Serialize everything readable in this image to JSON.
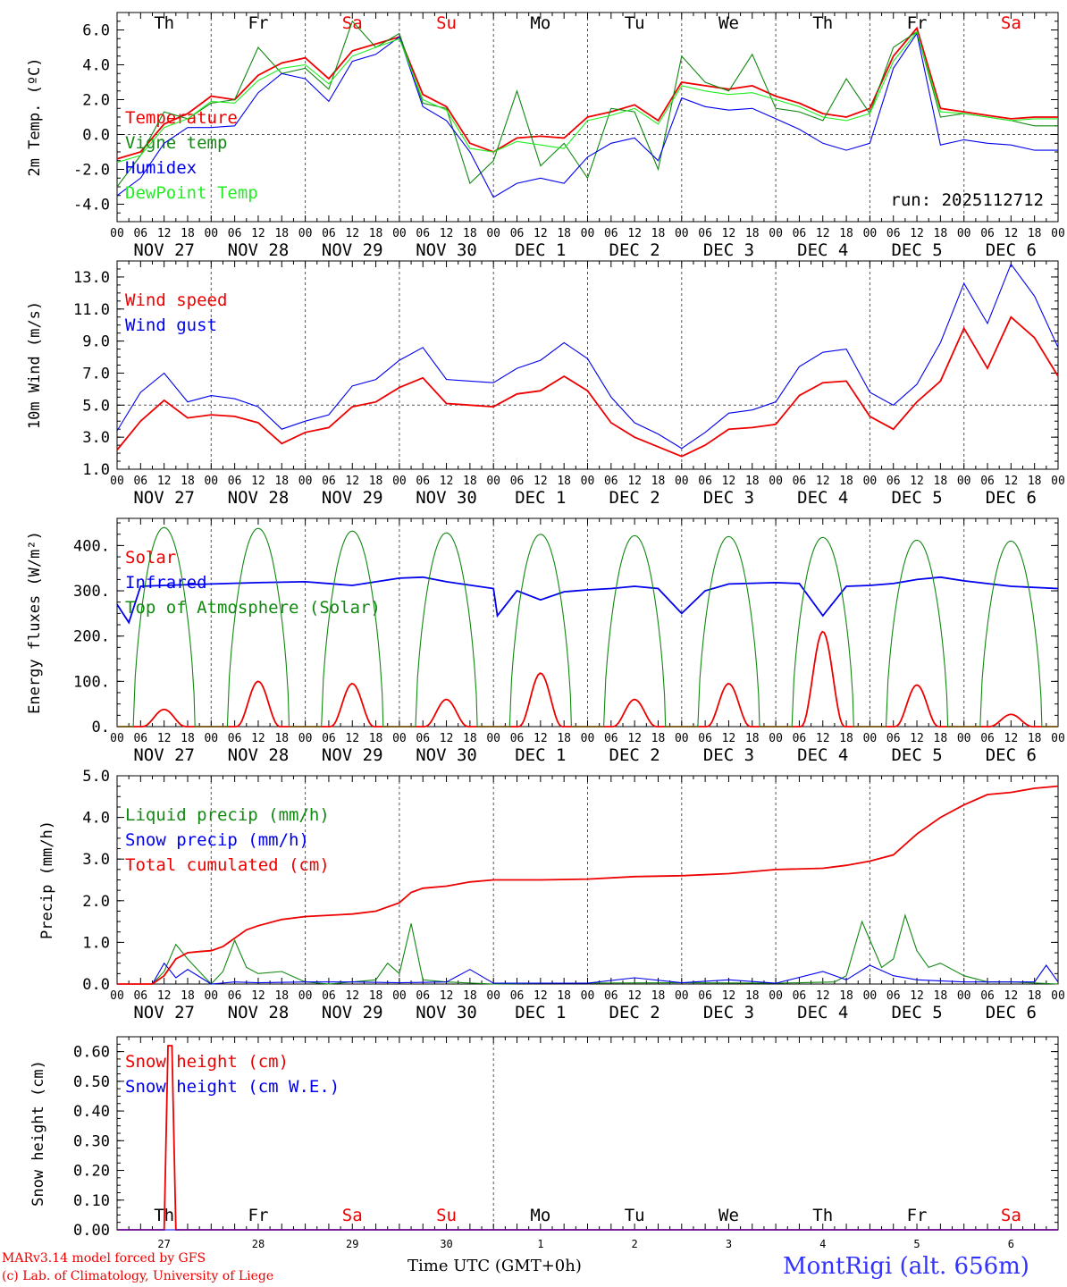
{
  "colors": {
    "red": "#ee0000",
    "green": "#118811",
    "blue": "#0000ee",
    "lightgreen": "#22ee22",
    "weekend": "#ee0000",
    "dash": "#555555"
  },
  "days": [
    "Th",
    "Fr",
    "Sa",
    "Su",
    "Mo",
    "Tu",
    "We",
    "Th",
    "Fr",
    "Sa"
  ],
  "weekend_flags": [
    false,
    false,
    true,
    true,
    false,
    false,
    false,
    false,
    false,
    true
  ],
  "dates": [
    "NOV 27",
    "NOV 28",
    "NOV 29",
    "NOV 30",
    "DEC  1",
    "DEC  2",
    "DEC  3",
    "DEC  4",
    "DEC  5",
    "DEC  6"
  ],
  "hour_ticks": [
    "00",
    "06",
    "12",
    "18"
  ],
  "hour_end": "00",
  "snow_dates": [
    "27",
    "28",
    "29",
    "30",
    "1",
    "2",
    "3",
    "4",
    "5",
    "6"
  ],
  "footer": {
    "credit_1": "MARv3.14 model forced by GFS",
    "credit_2": "(c) Lab. of Climatology, University of Liege",
    "x_axis_label": "Time UTC (GMT+0h)",
    "station": "MontRigi (alt. 656m)"
  },
  "chart_data": [
    {
      "id": "temperature",
      "type": "line",
      "ylabel": "2m Temp. (ºC)",
      "ylim": [
        -5.0,
        7.0
      ],
      "yticks": [
        -4,
        -2,
        0,
        2,
        4,
        6
      ],
      "yticklabels": [
        "-4.0",
        "-2.0",
        "0.0",
        "2.0",
        "4.0",
        "6.0"
      ],
      "dashed_y": 0.0,
      "annotation": "run: 2025112712",
      "x_unit": "hours from NOV 27 00 UTC",
      "series": [
        {
          "name": "Temperature",
          "color": "red",
          "x": [
            0,
            6,
            12,
            18,
            24,
            30,
            36,
            42,
            48,
            54,
            60,
            66,
            72,
            78,
            84,
            90,
            96,
            102,
            108,
            114,
            120,
            126,
            132,
            138,
            144,
            150,
            156,
            162,
            168,
            174,
            180,
            186,
            192,
            198,
            204,
            210,
            216,
            222,
            228,
            234,
            240
          ],
          "values": [
            -1.4,
            -1.0,
            0.6,
            1.2,
            2.2,
            2.0,
            3.4,
            4.1,
            4.4,
            3.2,
            4.8,
            5.2,
            5.6,
            2.3,
            1.6,
            -0.5,
            -1.0,
            -0.2,
            -0.1,
            -0.2,
            1.0,
            1.3,
            1.7,
            0.8,
            3.0,
            2.8,
            2.6,
            2.8,
            2.2,
            1.8,
            1.2,
            1.0,
            1.5,
            4.5,
            6.1,
            1.5,
            1.3,
            1.1,
            0.9,
            1.0,
            1.0
          ]
        },
        {
          "name": "Vigne temp",
          "color": "green",
          "x": [
            0,
            6,
            12,
            18,
            24,
            30,
            36,
            42,
            48,
            54,
            60,
            66,
            72,
            78,
            84,
            90,
            96,
            102,
            108,
            114,
            120,
            126,
            132,
            138,
            144,
            150,
            156,
            162,
            168,
            174,
            180,
            186,
            192,
            198,
            204,
            210,
            216,
            222,
            228,
            234,
            240
          ],
          "values": [
            -3.0,
            -1.2,
            1.3,
            0.9,
            1.8,
            2.0,
            5.0,
            3.5,
            3.8,
            2.6,
            6.5,
            5.0,
            5.8,
            1.8,
            1.5,
            -2.8,
            -1.5,
            2.5,
            -1.8,
            -0.5,
            -2.5,
            1.5,
            1.3,
            -2.0,
            4.5,
            3.0,
            2.5,
            4.6,
            1.5,
            1.3,
            0.8,
            3.2,
            1.2,
            5.0,
            5.9,
            1.0,
            1.2,
            1.0,
            0.8,
            0.5,
            0.5
          ]
        },
        {
          "name": "Humidex",
          "color": "blue",
          "x": [
            0,
            6,
            12,
            18,
            24,
            30,
            36,
            42,
            48,
            54,
            60,
            66,
            72,
            78,
            84,
            90,
            96,
            102,
            108,
            114,
            120,
            126,
            132,
            138,
            144,
            150,
            156,
            162,
            168,
            174,
            180,
            186,
            192,
            198,
            204,
            210,
            216,
            222,
            228,
            234,
            240
          ],
          "values": [
            -3.5,
            -2.5,
            -0.5,
            0.4,
            0.4,
            0.5,
            2.4,
            3.5,
            3.2,
            1.9,
            4.2,
            4.6,
            5.6,
            1.6,
            0.8,
            -1.0,
            -3.6,
            -2.8,
            -2.5,
            -2.8,
            -1.3,
            -0.5,
            -0.2,
            -1.5,
            2.1,
            1.6,
            1.4,
            1.5,
            0.9,
            0.3,
            -0.5,
            -0.9,
            -0.5,
            3.8,
            5.8,
            -0.6,
            -0.3,
            -0.5,
            -0.6,
            -0.9,
            -0.9
          ]
        },
        {
          "name": "DewPoint Temp",
          "color": "lightgreen",
          "x": [
            0,
            6,
            12,
            18,
            24,
            30,
            36,
            42,
            48,
            54,
            60,
            66,
            72,
            78,
            84,
            90,
            96,
            102,
            108,
            114,
            120,
            126,
            132,
            138,
            144,
            150,
            156,
            162,
            168,
            174,
            180,
            186,
            192,
            198,
            204,
            210,
            216,
            222,
            228,
            234,
            240
          ],
          "values": [
            -1.6,
            -1.2,
            0.4,
            0.9,
            1.9,
            1.8,
            3.1,
            3.8,
            4.0,
            2.9,
            4.5,
            5.0,
            5.5,
            2.0,
            1.4,
            -0.8,
            -1.0,
            -0.4,
            -0.6,
            -0.8,
            0.8,
            1.1,
            1.5,
            0.6,
            2.8,
            2.5,
            2.3,
            2.4,
            2.0,
            1.6,
            1.0,
            0.8,
            1.2,
            4.2,
            5.9,
            1.3,
            1.2,
            1.0,
            0.8,
            0.9,
            0.9
          ]
        }
      ]
    },
    {
      "id": "wind",
      "type": "line",
      "ylabel": "10m Wind (m/s)",
      "ylim": [
        1.0,
        14.0
      ],
      "yticks": [
        1,
        3,
        5,
        7,
        9,
        11,
        13
      ],
      "yticklabels": [
        "1.0",
        "3.0",
        "5.0",
        "7.0",
        "9.0",
        "11.0",
        "13.0"
      ],
      "dashed_y": 5.0,
      "x_unit": "hours from NOV 27 00 UTC",
      "series": [
        {
          "name": "Wind speed",
          "color": "red",
          "x": [
            0,
            6,
            12,
            18,
            24,
            30,
            36,
            42,
            48,
            54,
            60,
            66,
            72,
            78,
            84,
            90,
            96,
            102,
            108,
            114,
            120,
            126,
            132,
            138,
            144,
            150,
            156,
            162,
            168,
            174,
            180,
            186,
            192,
            198,
            204,
            210,
            216,
            222,
            228,
            234,
            240
          ],
          "values": [
            2.2,
            4.0,
            5.3,
            4.2,
            4.4,
            4.3,
            3.9,
            2.6,
            3.3,
            3.6,
            4.9,
            5.2,
            6.1,
            6.7,
            5.1,
            5.0,
            4.9,
            5.7,
            5.9,
            6.8,
            5.9,
            3.9,
            3.0,
            2.4,
            1.8,
            2.5,
            3.5,
            3.6,
            3.8,
            5.6,
            6.4,
            6.5,
            4.3,
            3.5,
            5.2,
            6.5,
            9.8,
            7.3,
            10.5,
            9.2,
            6.8
          ]
        },
        {
          "name": "Wind gust",
          "color": "blue",
          "x": [
            0,
            6,
            12,
            18,
            24,
            30,
            36,
            42,
            48,
            54,
            60,
            66,
            72,
            78,
            84,
            90,
            96,
            102,
            108,
            114,
            120,
            126,
            132,
            138,
            144,
            150,
            156,
            162,
            168,
            174,
            180,
            186,
            192,
            198,
            204,
            210,
            216,
            222,
            228,
            234,
            240
          ],
          "values": [
            3.4,
            5.8,
            7.0,
            5.2,
            5.6,
            5.4,
            4.9,
            3.5,
            4.0,
            4.4,
            6.2,
            6.6,
            7.8,
            8.6,
            6.6,
            6.5,
            6.4,
            7.3,
            7.8,
            8.9,
            7.9,
            5.5,
            3.9,
            3.2,
            2.3,
            3.3,
            4.5,
            4.7,
            5.2,
            7.4,
            8.3,
            8.5,
            5.8,
            5.0,
            6.3,
            8.9,
            12.6,
            10.1,
            13.8,
            11.8,
            8.6
          ]
        }
      ]
    },
    {
      "id": "energy",
      "type": "line",
      "ylabel": "Energy fluxes (W/m²)",
      "ylim": [
        0,
        460
      ],
      "yticks": [
        0,
        100,
        200,
        300,
        400
      ],
      "yticklabels": [
        "0.",
        "100.",
        "200.",
        "300.",
        "400."
      ],
      "x_unit": "hours from NOV 27 00 UTC",
      "series": [
        {
          "name": "Solar",
          "color": "red",
          "day_peaks": [
            38,
            100,
            95,
            60,
            118,
            60,
            95,
            210,
            92,
            27
          ]
        },
        {
          "name": "Infrared",
          "color": "blue",
          "x": [
            0,
            3,
            6,
            12,
            24,
            36,
            48,
            60,
            72,
            78,
            84,
            96,
            97,
            102,
            108,
            114,
            120,
            126,
            132,
            138,
            144,
            150,
            156,
            168,
            174,
            180,
            186,
            192,
            198,
            204,
            210,
            216,
            228,
            240
          ],
          "values": [
            270,
            230,
            310,
            312,
            315,
            318,
            320,
            312,
            328,
            330,
            320,
            305,
            245,
            300,
            280,
            298,
            302,
            305,
            310,
            305,
            250,
            300,
            315,
            318,
            316,
            245,
            310,
            312,
            316,
            325,
            330,
            322,
            310,
            305
          ]
        },
        {
          "name": "Top of Atmosphere (Solar)",
          "color": "green",
          "day_peaks": [
            440,
            438,
            432,
            428,
            425,
            422,
            420,
            418,
            412,
            410
          ]
        }
      ]
    },
    {
      "id": "precip",
      "type": "line",
      "ylabel": "Precip (mm/h)",
      "ylim": [
        0,
        5.0
      ],
      "yticks": [
        0,
        1,
        2,
        3,
        4,
        5
      ],
      "yticklabels": [
        "0.0",
        "1.0",
        "2.0",
        "3.0",
        "4.0",
        "5.0"
      ],
      "x_unit": "hours from NOV 27 00 UTC",
      "series": [
        {
          "name": "Liquid precip (mm/h)",
          "color": "green",
          "x": [
            0,
            9,
            12,
            15,
            18,
            21,
            24,
            27,
            30,
            33,
            36,
            42,
            48,
            54,
            60,
            66,
            69,
            72,
            75,
            78,
            84,
            96,
            108,
            144,
            168,
            183,
            186,
            190,
            195,
            198,
            201,
            204,
            207,
            210,
            216,
            222,
            228,
            240
          ],
          "values": [
            0,
            0,
            0.3,
            0.95,
            0.6,
            0.3,
            0,
            0.3,
            1.05,
            0.4,
            0.25,
            0.3,
            0.05,
            0,
            0.05,
            0.1,
            0.5,
            0.25,
            1.45,
            0.1,
            0.05,
            0,
            0.02,
            0.03,
            0.02,
            0.05,
            0.2,
            1.5,
            0.4,
            0.6,
            1.65,
            0.8,
            0.4,
            0.5,
            0.2,
            0.05,
            0.05,
            0
          ]
        },
        {
          "name": "Snow precip (mm/h)",
          "color": "blue",
          "x": [
            0,
            9,
            12,
            15,
            18,
            24,
            30,
            36,
            48,
            60,
            72,
            84,
            90,
            96,
            108,
            120,
            132,
            144,
            156,
            168,
            180,
            186,
            192,
            198,
            204,
            216,
            228,
            234,
            237,
            240
          ],
          "values": [
            0,
            0,
            0.5,
            0.15,
            0.35,
            0,
            0.05,
            0.03,
            0.05,
            0.05,
            0.03,
            0.05,
            0.35,
            0.02,
            0.02,
            0.02,
            0.15,
            0.03,
            0.1,
            0.02,
            0.3,
            0.1,
            0.45,
            0.2,
            0.1,
            0.05,
            0.05,
            0.05,
            0.45,
            0.05
          ]
        },
        {
          "name": "Total cumulated (cm)",
          "color": "red",
          "x": [
            0,
            9,
            12,
            15,
            18,
            21,
            24,
            27,
            30,
            33,
            36,
            42,
            48,
            54,
            60,
            66,
            72,
            75,
            78,
            84,
            90,
            96,
            108,
            120,
            132,
            144,
            156,
            168,
            180,
            186,
            192,
            198,
            204,
            210,
            216,
            222,
            228,
            234,
            240
          ],
          "values": [
            0,
            0,
            0.2,
            0.6,
            0.75,
            0.78,
            0.8,
            0.9,
            1.1,
            1.3,
            1.4,
            1.55,
            1.62,
            1.65,
            1.68,
            1.75,
            1.95,
            2.2,
            2.3,
            2.35,
            2.45,
            2.5,
            2.5,
            2.52,
            2.58,
            2.6,
            2.65,
            2.75,
            2.78,
            2.85,
            2.95,
            3.1,
            3.6,
            4.0,
            4.3,
            4.55,
            4.6,
            4.7,
            4.75
          ]
        }
      ]
    },
    {
      "id": "snow",
      "type": "line",
      "ylabel": "Snow height (cm)",
      "ylim": [
        0,
        0.65
      ],
      "yticks": [
        0,
        0.1,
        0.2,
        0.3,
        0.4,
        0.5,
        0.6
      ],
      "yticklabels": [
        "0.00",
        "0.10",
        "0.20",
        "0.30",
        "0.40",
        "0.50",
        "0.60"
      ],
      "x_unit": "hours from NOV 27 00 UTC",
      "series": [
        {
          "name": "Snow height (cm)",
          "color": "red",
          "x": [
            0,
            12,
            13,
            14,
            15,
            240
          ],
          "values": [
            0,
            0,
            0.62,
            0.62,
            0,
            0
          ]
        },
        {
          "name": "Snow height (cm W.E.)",
          "color": "blue",
          "x": [
            0,
            240
          ],
          "values": [
            0,
            0
          ]
        }
      ]
    }
  ]
}
